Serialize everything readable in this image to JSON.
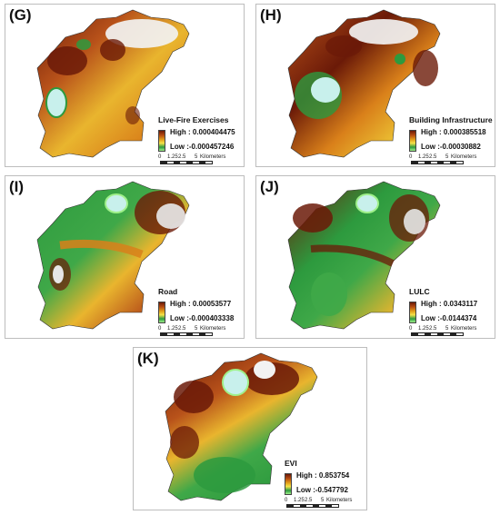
{
  "panels": [
    {
      "id": "G",
      "label": "(G)",
      "title": "Live-Fire Exercises",
      "high": "High : 0.000404475",
      "low": "Low :-0.000457246"
    },
    {
      "id": "H",
      "label": "(H)",
      "title": "Building Infrastructure",
      "high": "High : 0.000385518",
      "low": "Low :-0.00030882"
    },
    {
      "id": "I",
      "label": "(I)",
      "title": "Road",
      "high": "High : 0.00053577",
      "low": "Low :-0.000403338"
    },
    {
      "id": "J",
      "label": "(J)",
      "title": "LULC",
      "high": "High : 0.0343117",
      "low": "Low :-0.0144374"
    },
    {
      "id": "K",
      "label": "(K)",
      "title": "EVI",
      "high": "High : 0.853754",
      "low": "Low :-0.547792"
    }
  ],
  "scale_bar": {
    "t0": "0",
    "t1": "1.25",
    "t2": "2.5",
    "t3": "5",
    "unit": "Kilometers"
  },
  "colors": {
    "dark_brown": "#6b1a08",
    "orange": "#d9801a",
    "yellow": "#f0d23a",
    "green": "#2d9a3e",
    "light_green": "#9ff08a",
    "water": "#c8f0ec",
    "white": "#f4f4f4"
  }
}
